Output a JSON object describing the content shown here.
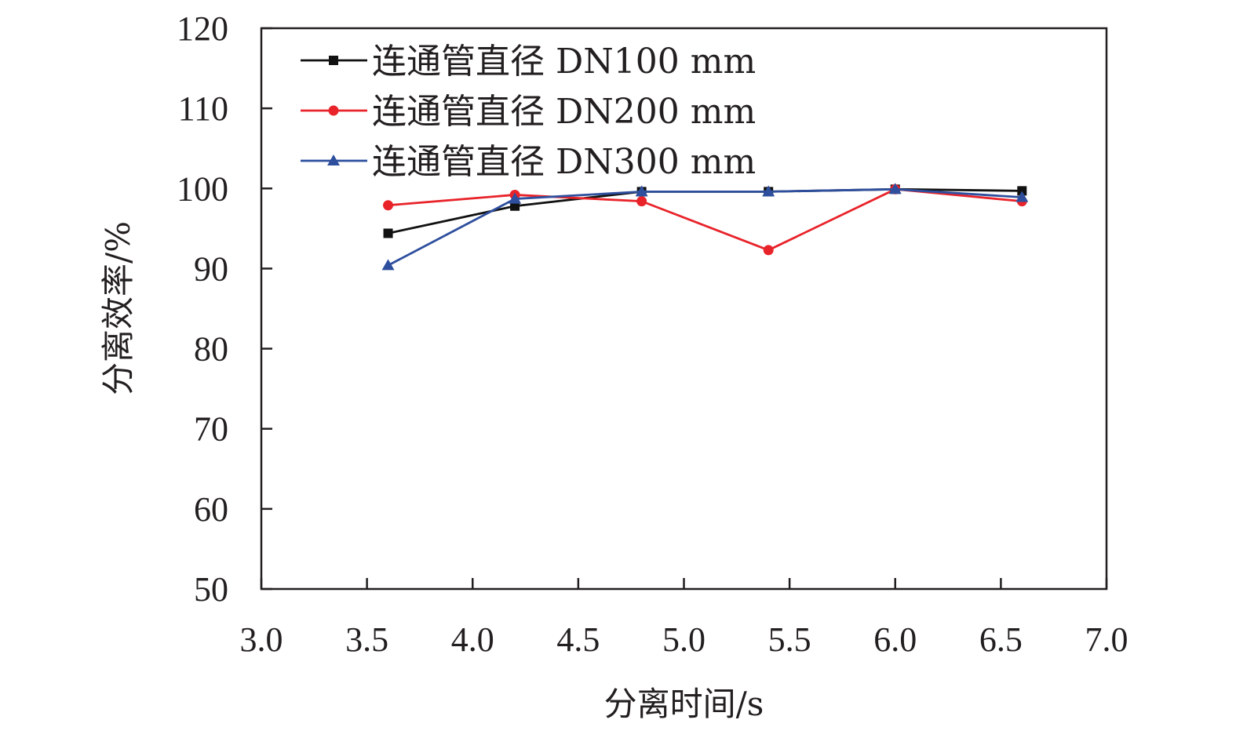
{
  "chart_data": {
    "type": "line",
    "title": "",
    "xlabel": "分离时间/s",
    "ylabel": "分离效率/%",
    "xlim": [
      3.0,
      7.0
    ],
    "ylim": [
      50,
      120
    ],
    "x_ticks": [
      "3.0",
      "3.5",
      "4.0",
      "4.5",
      "5.0",
      "5.5",
      "6.0",
      "6.5",
      "7.0"
    ],
    "y_ticks": [
      "50",
      "60",
      "70",
      "80",
      "90",
      "100",
      "110",
      "120"
    ],
    "x": [
      3.6,
      4.2,
      4.8,
      5.4,
      6.0,
      6.6
    ],
    "grid": false,
    "legend_position": "top-left",
    "series": [
      {
        "name": "连通管直径  DN100 mm",
        "color": "#111111",
        "marker": "square",
        "values": [
          94.4,
          97.8,
          99.6,
          99.6,
          99.9,
          99.7
        ]
      },
      {
        "name": "连通管直径  DN200 mm",
        "color": "#e8232a",
        "marker": "circle",
        "values": [
          97.9,
          99.2,
          98.4,
          92.3,
          99.9,
          98.4
        ]
      },
      {
        "name": "连通管直径  DN300 mm",
        "color": "#2e4f9e",
        "marker": "triangle",
        "values": [
          90.4,
          98.7,
          99.6,
          99.6,
          99.9,
          98.9
        ]
      }
    ]
  }
}
